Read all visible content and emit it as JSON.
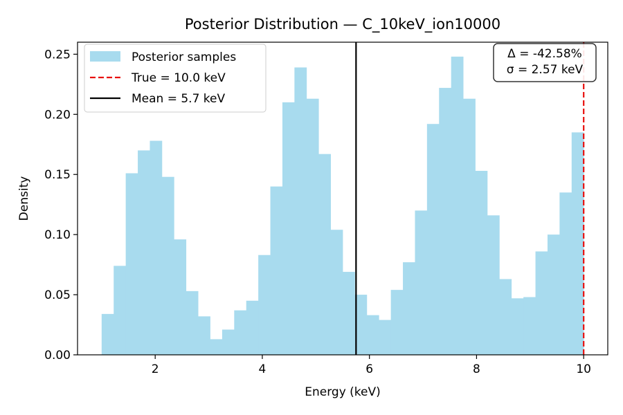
{
  "chart_data": {
    "type": "bar",
    "title": "Posterior Distribution — C_10keV_ion10000",
    "xlabel": "Energy (keV)",
    "ylabel": "Density",
    "xlim": [
      0.55,
      10.45
    ],
    "ylim": [
      0,
      0.26
    ],
    "xticks": [
      2,
      4,
      6,
      8,
      10
    ],
    "yticks": [
      0.0,
      0.05,
      0.1,
      0.15,
      0.2,
      0.25
    ],
    "bin_edges": [
      1.0,
      1.225,
      1.45,
      1.675,
      1.9,
      2.125,
      2.35,
      2.575,
      2.8,
      3.025,
      3.25,
      3.475,
      3.7,
      3.925,
      4.15,
      4.375,
      4.6,
      4.825,
      5.05,
      5.275,
      5.5,
      5.725,
      5.95,
      6.175,
      6.4,
      6.625,
      6.85,
      7.075,
      7.3,
      7.525,
      7.75,
      7.975,
      8.2,
      8.425,
      8.65,
      8.875,
      9.1,
      9.325,
      9.55,
      9.775,
      10.0
    ],
    "values": [
      0.034,
      0.074,
      0.151,
      0.17,
      0.178,
      0.148,
      0.096,
      0.053,
      0.032,
      0.013,
      0.021,
      0.037,
      0.045,
      0.083,
      0.14,
      0.21,
      0.239,
      0.213,
      0.167,
      0.104,
      0.069,
      0.05,
      0.033,
      0.029,
      0.054,
      0.077,
      0.12,
      0.192,
      0.222,
      0.248,
      0.213,
      0.153,
      0.116,
      0.063,
      0.047,
      0.048,
      0.086,
      0.1,
      0.135,
      0.185
    ],
    "bar_color": "#a8dbee",
    "vlines": [
      {
        "label": "True = 10.0 keV",
        "x": 10.0,
        "color": "#e8100e",
        "style": "dashed"
      },
      {
        "label": "Mean = 5.7 keV",
        "x": 5.75,
        "color": "#000000",
        "style": "solid"
      }
    ],
    "legend": {
      "placement": "top-left",
      "entries": [
        "Posterior samples",
        "True = 10.0 keV",
        "Mean = 5.7 keV"
      ]
    },
    "annotation": {
      "placement": "top-right",
      "lines": [
        "Δ = -42.58%",
        "σ = 2.57 keV"
      ]
    },
    "grid": false
  }
}
